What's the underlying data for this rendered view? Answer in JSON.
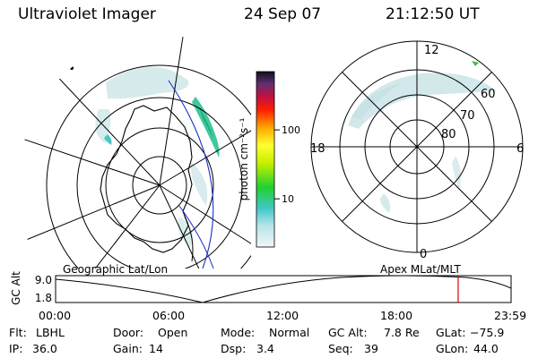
{
  "header": {
    "instrument": "Ultraviolet Imager",
    "date": "24 Sep 07",
    "time": "21:12:50 UT"
  },
  "colorbar": {
    "unit_label": "photon cm⁻²s⁻¹",
    "ticks": [
      {
        "value": 10,
        "label": "10"
      },
      {
        "value": 100,
        "label": "100"
      }
    ],
    "range": [
      2,
      700
    ],
    "scale": "log"
  },
  "apex_map": {
    "mlt_labels": {
      "top": "12",
      "left": "18",
      "right": "6",
      "bottom": "0"
    },
    "lat_labels": [
      "60",
      "70",
      "80"
    ]
  },
  "timeline": {
    "map_labels": {
      "left": "Geographic Lat/Lon",
      "right": "Apex MLat/MLT"
    },
    "y_axis": {
      "label": "GC Alt",
      "ticks": [
        "9.0",
        "1.8"
      ],
      "range": [
        1.8,
        9.0
      ]
    },
    "x_ticks": [
      "00:00",
      "06:00",
      "12:00",
      "18:00",
      "23:59"
    ],
    "x_range_hours": [
      0,
      24
    ],
    "current_time_hours": 21.21,
    "marker_color": "#dd0000"
  },
  "info": {
    "row1": [
      {
        "label": "Flt:",
        "value": "LBHL"
      },
      {
        "label": "Door:",
        "value": "Open"
      },
      {
        "label": "Mode:",
        "value": "Normal"
      },
      {
        "label": "GC Alt:",
        "value": "7.8 Re"
      },
      {
        "label": "GLat:",
        "value": "−75.9"
      }
    ],
    "row2": [
      {
        "label": "IP:",
        "value": "36.0"
      },
      {
        "label": "Gain:",
        "value": "14"
      },
      {
        "label": "Dsp:",
        "value": "3.4"
      },
      {
        "label": "Seq:",
        "value": "39"
      },
      {
        "label": "GLon:",
        "value": "44.0"
      }
    ]
  }
}
